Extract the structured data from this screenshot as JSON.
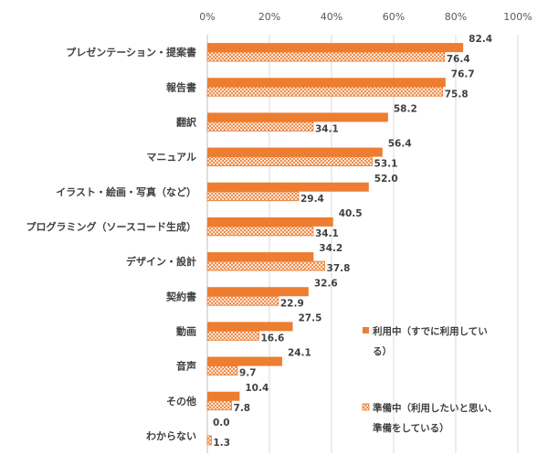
{
  "chart_data": {
    "type": "bar",
    "orientation": "horizontal",
    "title": "",
    "xlabel": "",
    "ylabel": "",
    "xlim": [
      0,
      100
    ],
    "x_ticks": [
      "0%",
      "20%",
      "40%",
      "60%",
      "80%",
      "100%"
    ],
    "grid": true,
    "legend_position": "right",
    "categories": [
      "プレゼンテーション・提案書",
      "報告書",
      "翻訳",
      "マニュアル",
      "イラスト・絵画・写真（など）",
      "プログラミング（ソースコード生成）",
      "デザイン・設計",
      "契約書",
      "動画",
      "音声",
      "その他",
      "わからない"
    ],
    "series": [
      {
        "name": "利用中（すでに利用している）",
        "legend_lines": [
          "利用中（すでに利用してい",
          "る）"
        ],
        "pattern": "solid",
        "color": "#ED7D31",
        "values": [
          82.4,
          76.7,
          58.2,
          56.4,
          52.0,
          40.5,
          34.2,
          32.6,
          27.5,
          24.1,
          10.4,
          0.0
        ],
        "labels": [
          "82.4",
          "76.7",
          "58.2",
          "56.4",
          "52.0",
          "40.5",
          "34.2",
          "32.6",
          "27.5",
          "24.1",
          "10.4",
          "0.0"
        ]
      },
      {
        "name": "準備中（利用したいと思い、準備をしている）",
        "legend_lines": [
          "準備中（利用したいと思い、",
          "準備をしている）"
        ],
        "pattern": "crosshatch",
        "color": "#ED7D31",
        "values": [
          76.4,
          75.8,
          34.1,
          53.1,
          29.4,
          34.1,
          37.8,
          22.9,
          16.6,
          9.7,
          7.8,
          1.3
        ],
        "labels": [
          "76.4",
          "75.8",
          "34.1",
          "53.1",
          "29.4",
          "34.1",
          "37.8",
          "22.9",
          "16.6",
          "9.7",
          "7.8",
          "1.3"
        ]
      }
    ]
  }
}
